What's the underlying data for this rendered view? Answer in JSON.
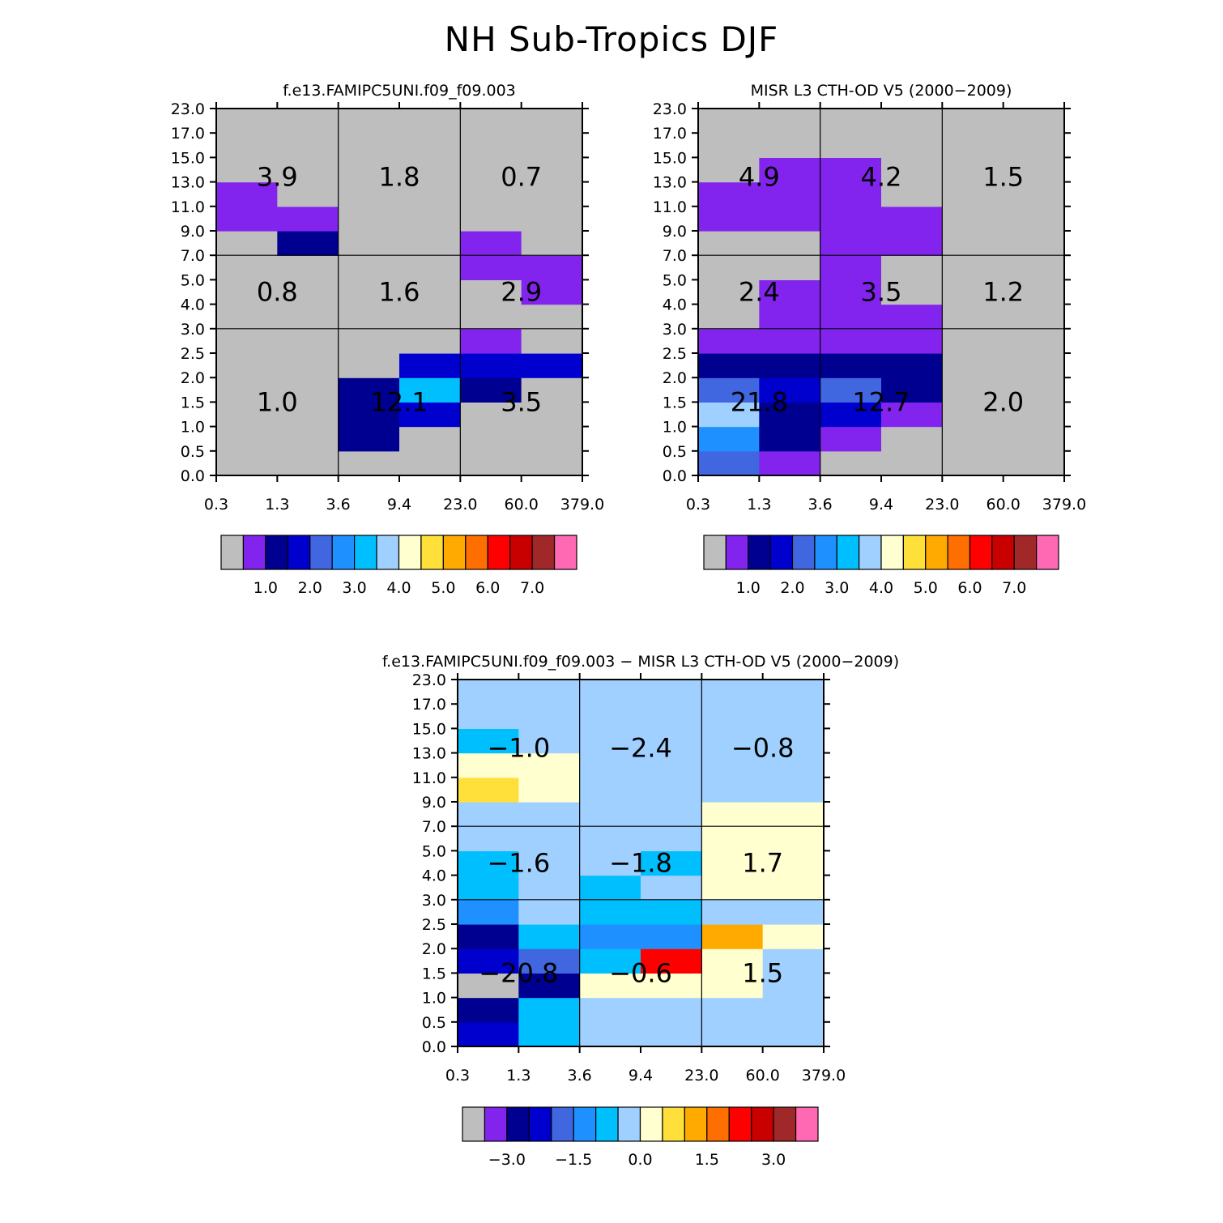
{
  "title": "NH Sub-Tropics DJF",
  "colormaps": {
    "abs": [
      "#bebebe",
      "#8224ee",
      "#000090",
      "#0000ce",
      "#4066e0",
      "#1e90ff",
      "#00bfff",
      "#a0d0ff",
      "#ffffd0",
      "#ffe03a",
      "#ffaa00",
      "#ff6e00",
      "#ff0000",
      "#c80000",
      "#a02828",
      "#ff69b4"
    ],
    "diff": [
      "#bebebe",
      "#8224ee",
      "#000090",
      "#0000ce",
      "#4066e0",
      "#1e90ff",
      "#00bfff",
      "#a0d0ff",
      "#ffffd0",
      "#ffe03a",
      "#ffaa00",
      "#ff6e00",
      "#ff0000",
      "#c80000",
      "#a02828",
      "#ff69b4"
    ]
  },
  "chart_data": [
    {
      "type": "heatmap",
      "title": "f.e13.FAMIPC5UNI.f09_f09.003",
      "x_ticks": [
        "0.3",
        "1.3",
        "3.6",
        "9.4",
        "23.0",
        "60.0",
        "379.0"
      ],
      "y_ticks": [
        "0.0",
        "0.5",
        "1.0",
        "1.5",
        "2.0",
        "2.5",
        "3.0",
        "4.0",
        "5.0",
        "7.0",
        "9.0",
        "11.0",
        "13.0",
        "15.0",
        "17.0",
        "23.0"
      ],
      "colorbar": {
        "map": "abs",
        "labels": [
          "1.0",
          "2.0",
          "3.0",
          "4.0",
          "5.0",
          "6.0",
          "7.0"
        ]
      },
      "cell_colors": [
        [
          0,
          0,
          0,
          0,
          0,
          0,
          0,
          0,
          0,
          0,
          1,
          1,
          0,
          0,
          0
        ],
        [
          0,
          0,
          0,
          0,
          0,
          0,
          0,
          0,
          0,
          2,
          1,
          0,
          0,
          0,
          0
        ],
        [
          0,
          2,
          2,
          2,
          0,
          0,
          0,
          0,
          0,
          0,
          0,
          0,
          0,
          0,
          0
        ],
        [
          0,
          0,
          3,
          6,
          3,
          0,
          0,
          0,
          0,
          0,
          0,
          0,
          0,
          0,
          0
        ],
        [
          0,
          0,
          0,
          2,
          3,
          1,
          0,
          0,
          1,
          1,
          0,
          0,
          0,
          0,
          0
        ],
        [
          0,
          0,
          0,
          0,
          3,
          0,
          0,
          1,
          1,
          0,
          0,
          0,
          0,
          0,
          0
        ]
      ],
      "sums": [
        {
          "value": "1.0",
          "col": 0,
          "row": 0
        },
        {
          "value": "12.1",
          "col": 1,
          "row": 0
        },
        {
          "value": "3.5",
          "col": 2,
          "row": 0
        },
        {
          "value": "0.8",
          "col": 0,
          "row": 1
        },
        {
          "value": "1.6",
          "col": 1,
          "row": 1
        },
        {
          "value": "2.9",
          "col": 2,
          "row": 1
        },
        {
          "value": "3.9",
          "col": 0,
          "row": 2
        },
        {
          "value": "1.8",
          "col": 1,
          "row": 2
        },
        {
          "value": "0.7",
          "col": 2,
          "row": 2
        }
      ]
    },
    {
      "type": "heatmap",
      "title": "MISR L3 CTH-OD V5 (2000-2009)",
      "x_ticks": [
        "0.3",
        "1.3",
        "3.6",
        "9.4",
        "23.0",
        "60.0",
        "379.0"
      ],
      "y_ticks": [
        "0.0",
        "0.5",
        "1.0",
        "1.5",
        "2.0",
        "2.5",
        "3.0",
        "4.0",
        "5.0",
        "7.0",
        "9.0",
        "11.0",
        "13.0",
        "15.0",
        "17.0",
        "23.0"
      ],
      "colorbar": {
        "map": "abs",
        "labels": [
          "1.0",
          "2.0",
          "3.0",
          "4.0",
          "5.0",
          "6.0",
          "7.0"
        ]
      },
      "cell_colors": [
        [
          4,
          5,
          7,
          4,
          2,
          1,
          0,
          0,
          0,
          0,
          1,
          1,
          0,
          0,
          0
        ],
        [
          1,
          2,
          2,
          3,
          2,
          1,
          1,
          1,
          0,
          0,
          1,
          1,
          1,
          0,
          0
        ],
        [
          0,
          1,
          3,
          4,
          2,
          1,
          1,
          1,
          1,
          1,
          1,
          1,
          1,
          0,
          0
        ],
        [
          0,
          0,
          1,
          2,
          2,
          1,
          1,
          0,
          0,
          1,
          1,
          0,
          0,
          0,
          0
        ],
        [
          0,
          0,
          0,
          0,
          0,
          0,
          0,
          0,
          0,
          0,
          0,
          0,
          0,
          0,
          0
        ],
        [
          0,
          0,
          0,
          0,
          0,
          0,
          0,
          0,
          0,
          0,
          0,
          0,
          0,
          0,
          0
        ]
      ],
      "sums": [
        {
          "value": "21.8",
          "col": 0,
          "row": 0
        },
        {
          "value": "12.7",
          "col": 1,
          "row": 0
        },
        {
          "value": "2.0",
          "col": 2,
          "row": 0
        },
        {
          "value": "2.4",
          "col": 0,
          "row": 1
        },
        {
          "value": "3.5",
          "col": 1,
          "row": 1
        },
        {
          "value": "1.2",
          "col": 2,
          "row": 1
        },
        {
          "value": "4.9",
          "col": 0,
          "row": 2
        },
        {
          "value": "4.2",
          "col": 1,
          "row": 2
        },
        {
          "value": "1.5",
          "col": 2,
          "row": 2
        }
      ]
    },
    {
      "type": "heatmap",
      "title": "f.e13.FAMIPC5UNI.f09_f09.003 - MISR L3 CTH-OD V5 (2000-2009)",
      "x_ticks": [
        "0.3",
        "1.3",
        "3.6",
        "9.4",
        "23.0",
        "60.0",
        "379.0"
      ],
      "y_ticks": [
        "0.0",
        "0.5",
        "1.0",
        "1.5",
        "2.0",
        "2.5",
        "3.0",
        "4.0",
        "5.0",
        "7.0",
        "9.0",
        "11.0",
        "13.0",
        "15.0",
        "17.0",
        "23.0"
      ],
      "colorbar": {
        "map": "diff",
        "labels": [
          "-3.0",
          "-1.5",
          "0.0",
          "1.5",
          "3.0"
        ]
      },
      "cell_colors": [
        [
          3,
          2,
          0,
          3,
          2,
          5,
          6,
          6,
          7,
          7,
          9,
          8,
          6,
          7,
          7
        ],
        [
          6,
          6,
          2,
          4,
          6,
          7,
          7,
          7,
          7,
          7,
          8,
          8,
          7,
          7,
          7
        ],
        [
          7,
          7,
          8,
          6,
          5,
          6,
          6,
          7,
          7,
          7,
          7,
          7,
          7,
          7,
          7
        ],
        [
          7,
          7,
          8,
          12,
          5,
          6,
          7,
          6,
          7,
          7,
          7,
          7,
          7,
          7,
          7
        ],
        [
          7,
          7,
          8,
          8,
          10,
          7,
          8,
          8,
          8,
          8,
          7,
          7,
          7,
          7,
          7
        ],
        [
          7,
          7,
          7,
          7,
          8,
          7,
          8,
          8,
          8,
          8,
          7,
          7,
          7,
          7,
          7
        ]
      ],
      "sums": [
        {
          "value": "-20.8",
          "col": 0,
          "row": 0
        },
        {
          "value": "-0.6",
          "col": 1,
          "row": 0
        },
        {
          "value": "1.5",
          "col": 2,
          "row": 0
        },
        {
          "value": "-1.6",
          "col": 0,
          "row": 1
        },
        {
          "value": "-1.8",
          "col": 1,
          "row": 1
        },
        {
          "value": "1.7",
          "col": 2,
          "row": 1
        },
        {
          "value": "-1.0",
          "col": 0,
          "row": 2
        },
        {
          "value": "-2.4",
          "col": 1,
          "row": 2
        },
        {
          "value": "-0.8",
          "col": 2,
          "row": 2
        }
      ]
    }
  ]
}
